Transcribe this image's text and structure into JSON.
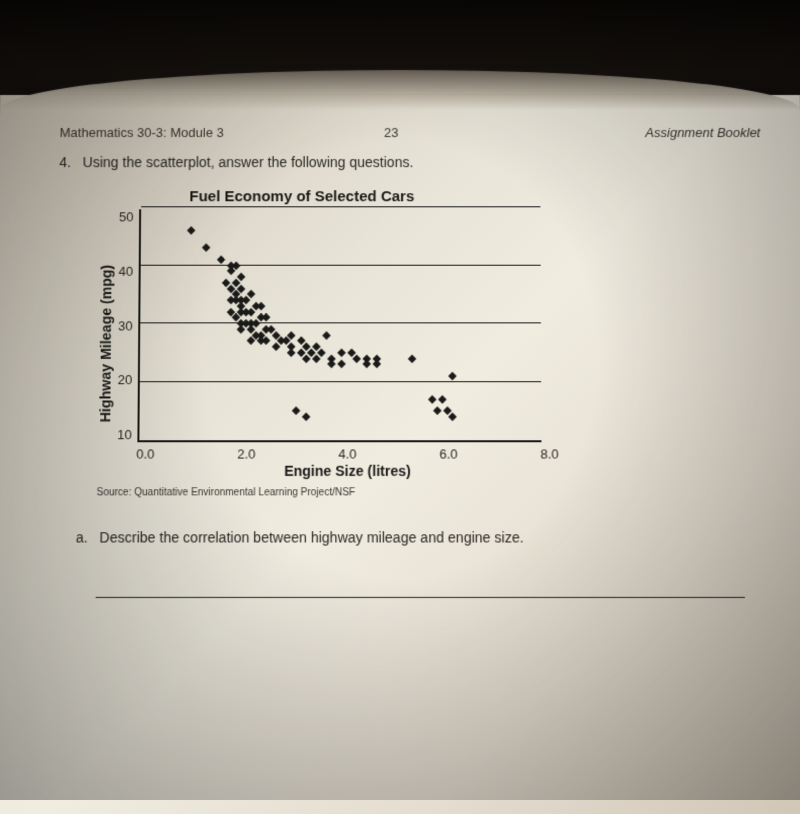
{
  "header": {
    "left": "Mathematics 30-3: Module 3",
    "page_num": "23",
    "right": "Assignment Booklet"
  },
  "question": {
    "number": "4.",
    "text": "Using the scatterplot, answer the following questions."
  },
  "chart": {
    "type": "scatter",
    "title": "Fuel Economy of Selected Cars",
    "xlabel": "Engine Size (litres)",
    "ylabel": "Highway Mileage (mpg)",
    "xlim": [
      0.0,
      8.0
    ],
    "ylim": [
      10,
      50
    ],
    "xticks": [
      "0.0",
      "2.0",
      "4.0",
      "6.0",
      "8.0"
    ],
    "yticks": [
      "50",
      "40",
      "30",
      "20",
      "10"
    ],
    "grid_y": [
      20,
      30,
      40,
      50
    ],
    "point_color": "#1a1a18",
    "axis_color": "#1a1a18",
    "background_color": "transparent",
    "title_fontsize": 15,
    "label_fontsize": 14,
    "tick_fontsize": 13,
    "points": [
      [
        1.0,
        46
      ],
      [
        1.3,
        43
      ],
      [
        1.6,
        41
      ],
      [
        1.8,
        40
      ],
      [
        1.8,
        39
      ],
      [
        1.9,
        40
      ],
      [
        1.7,
        37
      ],
      [
        1.8,
        36
      ],
      [
        1.9,
        37
      ],
      [
        2.0,
        36
      ],
      [
        2.0,
        38
      ],
      [
        1.9,
        35
      ],
      [
        1.8,
        34
      ],
      [
        1.9,
        34
      ],
      [
        2.0,
        34
      ],
      [
        2.1,
        34
      ],
      [
        2.2,
        35
      ],
      [
        2.0,
        33
      ],
      [
        1.8,
        32
      ],
      [
        1.9,
        31
      ],
      [
        2.0,
        32
      ],
      [
        2.1,
        32
      ],
      [
        2.2,
        32
      ],
      [
        2.3,
        33
      ],
      [
        2.4,
        33
      ],
      [
        2.0,
        30
      ],
      [
        2.1,
        30
      ],
      [
        2.2,
        30
      ],
      [
        2.3,
        30
      ],
      [
        2.4,
        31
      ],
      [
        2.5,
        31
      ],
      [
        2.0,
        29
      ],
      [
        2.2,
        29
      ],
      [
        2.3,
        28
      ],
      [
        2.4,
        28
      ],
      [
        2.5,
        29
      ],
      [
        2.6,
        29
      ],
      [
        2.7,
        28
      ],
      [
        2.2,
        27
      ],
      [
        2.4,
        27
      ],
      [
        2.5,
        27
      ],
      [
        2.8,
        27
      ],
      [
        3.0,
        28
      ],
      [
        2.7,
        26
      ],
      [
        2.9,
        27
      ],
      [
        3.0,
        26
      ],
      [
        3.2,
        27
      ],
      [
        3.3,
        26
      ],
      [
        3.5,
        26
      ],
      [
        3.7,
        28
      ],
      [
        3.0,
        25
      ],
      [
        3.2,
        25
      ],
      [
        3.4,
        25
      ],
      [
        3.6,
        25
      ],
      [
        3.3,
        24
      ],
      [
        3.5,
        24
      ],
      [
        3.8,
        24
      ],
      [
        4.0,
        25
      ],
      [
        4.2,
        25
      ],
      [
        3.8,
        23
      ],
      [
        4.0,
        23
      ],
      [
        4.3,
        24
      ],
      [
        4.5,
        24
      ],
      [
        4.7,
        24
      ],
      [
        4.5,
        23
      ],
      [
        4.7,
        23
      ],
      [
        5.4,
        24
      ],
      [
        6.2,
        21
      ],
      [
        3.1,
        15
      ],
      [
        3.3,
        14
      ],
      [
        5.8,
        17
      ],
      [
        6.0,
        17
      ],
      [
        5.9,
        15
      ],
      [
        6.1,
        15
      ],
      [
        6.2,
        14
      ]
    ]
  },
  "source": "Source:  Quantitative Environmental Learning Project/NSF",
  "sub_question": {
    "label": "a.",
    "text": "Describe the correlation between highway mileage and engine size."
  }
}
